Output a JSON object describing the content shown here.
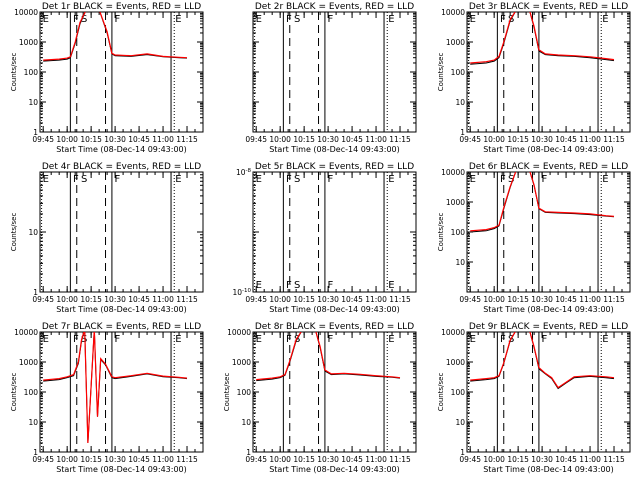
{
  "chart_data": [
    {
      "type": "line",
      "title": "Det 1r BLACK = Events, RED = LLD",
      "xlabel": "Start Time (08-Dec-14 09:43:00)",
      "ylabel": "Counts/sec",
      "x_ticks": [
        "09:45",
        "10:00",
        "10:15",
        "10:30",
        "10:45",
        "11:00",
        "11:15"
      ],
      "y_scale": "log",
      "ylim": [
        1,
        10000
      ],
      "y_ticks": [
        "1",
        "10",
        "100",
        "1000",
        "10000"
      ],
      "markers": [
        "E",
        "F",
        "S",
        "F",
        "E"
      ],
      "series": [
        {
          "color": "#000000",
          "x": [
            "09:45",
            "09:55",
            "10:00",
            "10:02",
            "10:05",
            "10:08",
            "10:12",
            "10:16",
            "10:20",
            "10:25",
            "10:28",
            "10:30",
            "10:40",
            "10:50",
            "11:00",
            "11:10",
            "11:15"
          ],
          "values": [
            230,
            250,
            270,
            300,
            900,
            4000,
            12000,
            12000,
            12000,
            2000,
            400,
            350,
            330,
            380,
            320,
            300,
            290
          ]
        },
        {
          "color": "#ff0000",
          "x": [
            "09:45",
            "09:55",
            "10:00",
            "10:02",
            "10:05",
            "10:08",
            "10:12",
            "10:16",
            "10:20",
            "10:25",
            "10:28",
            "10:30",
            "10:40",
            "10:50",
            "11:00",
            "11:10",
            "11:15"
          ],
          "values": [
            250,
            270,
            290,
            320,
            1000,
            4500,
            12000,
            12000,
            12000,
            2200,
            420,
            370,
            350,
            400,
            330,
            310,
            300
          ]
        }
      ]
    },
    {
      "type": "line",
      "title": "Det 2r BLACK = Events, RED = LLD",
      "xlabel": "Start Time (08-Dec-14 09:43:00)",
      "ylabel": "",
      "x_ticks": [
        "09:45",
        "10:00",
        "10:15",
        "10:30",
        "10:45",
        "11:00",
        "11:15"
      ],
      "y_scale": "log",
      "ylim": [
        1,
        10000
      ],
      "y_ticks": [],
      "markers": [
        "E",
        "F",
        "S",
        "F",
        "E"
      ],
      "series": []
    },
    {
      "type": "line",
      "title": "Det 3r BLACK = Events, RED = LLD",
      "xlabel": "Start Time (08-Dec-14 09:43:00)",
      "ylabel": "Counts/sec",
      "x_ticks": [
        "09:45",
        "10:00",
        "10:15",
        "10:30",
        "10:45",
        "11:00",
        "11:15"
      ],
      "y_scale": "log",
      "ylim": [
        1,
        10000
      ],
      "y_ticks": [
        "1",
        "10",
        "100",
        "1000",
        "10000"
      ],
      "markers": [
        "E",
        "F",
        "S",
        "F",
        "E"
      ],
      "series": [
        {
          "color": "#000000",
          "x": [
            "09:45",
            "09:55",
            "10:00",
            "10:03",
            "10:06",
            "10:10",
            "10:14",
            "10:18",
            "10:22",
            "10:25",
            "10:28",
            "10:32",
            "10:40",
            "10:50",
            "11:00",
            "11:10",
            "11:15"
          ],
          "values": [
            180,
            200,
            230,
            300,
            900,
            5000,
            12000,
            12000,
            12000,
            3000,
            500,
            380,
            350,
            330,
            300,
            260,
            240
          ]
        },
        {
          "color": "#ff0000",
          "x": [
            "09:45",
            "09:55",
            "10:00",
            "10:03",
            "10:06",
            "10:10",
            "10:14",
            "10:18",
            "10:22",
            "10:25",
            "10:28",
            "10:32",
            "10:40",
            "10:50",
            "11:00",
            "11:10",
            "11:15"
          ],
          "values": [
            200,
            220,
            250,
            330,
            1000,
            5500,
            12000,
            12000,
            12000,
            3300,
            550,
            400,
            370,
            350,
            320,
            280,
            260
          ]
        }
      ]
    },
    {
      "type": "line",
      "title": "Det 4r BLACK = Events, RED = LLD",
      "xlabel": "Start Time (08-Dec-14 09:43:00)",
      "ylabel": "Counts/sec",
      "x_ticks": [
        "09:45",
        "10:00",
        "10:15",
        "10:30",
        "10:45",
        "11:00",
        "11:15"
      ],
      "y_scale": "log",
      "ylim": [
        1,
        100
      ],
      "y_ticks": [
        "1",
        "10"
      ],
      "markers": [
        "E",
        "F",
        "S",
        "F",
        "E"
      ],
      "series": []
    },
    {
      "type": "line",
      "title": "Det 5r BLACK = Events, RED = LLD",
      "xlabel": "Start Time (08-Dec-14 09:43:00)",
      "ylabel": "",
      "x_ticks": [
        "09:45",
        "10:00",
        "10:15",
        "10:30",
        "10:45",
        "11:00",
        "11:15"
      ],
      "y_scale": "log",
      "ylim": [
        1e-10,
        1e-08
      ],
      "y_ticks": [
        "10^-10",
        "10^-8"
      ],
      "markers": [
        "E",
        "F",
        "S",
        "F",
        "E"
      ],
      "series": []
    },
    {
      "type": "line",
      "title": "Det 6r BLACK = Events, RED = LLD",
      "xlabel": "Start Time (08-Dec-14 09:43:00)",
      "ylabel": "Counts/sec",
      "x_ticks": [
        "09:45",
        "10:00",
        "10:15",
        "10:30",
        "10:45",
        "11:00",
        "11:15"
      ],
      "y_scale": "log",
      "ylim": [
        1,
        10000
      ],
      "y_ticks": [
        "10",
        "100",
        "1000",
        "10000"
      ],
      "markers": [
        "E",
        "F",
        "S",
        "F",
        "E"
      ],
      "series": [
        {
          "color": "#000000",
          "x": [
            "09:45",
            "09:55",
            "10:00",
            "10:03",
            "10:06",
            "10:10",
            "10:14",
            "10:18",
            "10:22",
            "10:25",
            "10:28",
            "10:32",
            "10:40",
            "10:50",
            "11:00",
            "11:10",
            "11:15"
          ],
          "values": [
            100,
            110,
            130,
            160,
            600,
            3000,
            12000,
            12000,
            12000,
            3500,
            600,
            450,
            430,
            410,
            380,
            340,
            320
          ]
        },
        {
          "color": "#ff0000",
          "x": [
            "09:45",
            "09:55",
            "10:00",
            "10:03",
            "10:06",
            "10:10",
            "10:14",
            "10:18",
            "10:22",
            "10:25",
            "10:28",
            "10:32",
            "10:40",
            "10:50",
            "11:00",
            "11:10",
            "11:15"
          ],
          "values": [
            110,
            120,
            140,
            170,
            650,
            3200,
            12000,
            12000,
            12000,
            3700,
            620,
            470,
            450,
            430,
            400,
            350,
            330
          ]
        }
      ]
    },
    {
      "type": "line",
      "title": "Det 7r BLACK = Events, RED = LLD",
      "xlabel": "Start Time (08-Dec-14 09:43:00)",
      "ylabel": "Counts/sec",
      "x_ticks": [
        "09:45",
        "10:00",
        "10:15",
        "10:30",
        "10:45",
        "11:00",
        "11:15"
      ],
      "y_scale": "log",
      "ylim": [
        1,
        10000
      ],
      "y_ticks": [
        "1",
        "10",
        "100",
        "1000",
        "10000"
      ],
      "markers": [
        "E",
        "F",
        "S",
        "F",
        "E"
      ],
      "series": [
        {
          "color": "#000000",
          "x": [
            "09:45",
            "09:55",
            "10:00",
            "10:04",
            "10:07",
            "10:09",
            "10:11",
            "10:13",
            "10:17",
            "10:19",
            "10:21",
            "10:24",
            "10:28",
            "10:30",
            "10:40",
            "10:50",
            "11:00",
            "11:10",
            "11:15"
          ],
          "values": [
            230,
            260,
            300,
            350,
            900,
            5000,
            12000,
            2,
            12000,
            15,
            1200,
            800,
            300,
            280,
            330,
            400,
            320,
            300,
            280
          ]
        },
        {
          "color": "#ff0000",
          "x": [
            "09:45",
            "09:55",
            "10:00",
            "10:04",
            "10:07",
            "10:09",
            "10:11",
            "10:13",
            "10:17",
            "10:19",
            "10:21",
            "10:24",
            "10:28",
            "10:30",
            "10:40",
            "10:50",
            "11:00",
            "11:10",
            "11:15"
          ],
          "values": [
            250,
            280,
            320,
            380,
            1000,
            5500,
            12000,
            2,
            12000,
            15,
            1300,
            850,
            320,
            300,
            350,
            420,
            340,
            310,
            290
          ]
        }
      ]
    },
    {
      "type": "line",
      "title": "Det 8r BLACK = Events, RED = LLD",
      "xlabel": "Start Time (08-Dec-14 09:43:00)",
      "ylabel": "Counts/sec",
      "x_ticks": [
        "09:45",
        "10:00",
        "10:15",
        "10:30",
        "10:45",
        "11:00",
        "11:15"
      ],
      "y_scale": "log",
      "ylim": [
        1,
        10000
      ],
      "y_ticks": [
        "1",
        "10",
        "100",
        "1000",
        "10000"
      ],
      "markers": [
        "E",
        "F",
        "S",
        "F",
        "E"
      ],
      "series": [
        {
          "color": "#000000",
          "x": [
            "09:45",
            "09:55",
            "10:00",
            "10:03",
            "10:06",
            "10:10",
            "10:14",
            "10:18",
            "10:22",
            "10:25",
            "10:28",
            "10:32",
            "10:40",
            "10:50",
            "11:00",
            "11:10",
            "11:15"
          ],
          "values": [
            240,
            270,
            300,
            360,
            1000,
            5000,
            12000,
            12000,
            12000,
            3000,
            500,
            380,
            400,
            370,
            330,
            310,
            290
          ]
        },
        {
          "color": "#ff0000",
          "x": [
            "09:45",
            "09:55",
            "10:00",
            "10:03",
            "10:06",
            "10:10",
            "10:14",
            "10:18",
            "10:22",
            "10:25",
            "10:28",
            "10:32",
            "10:40",
            "10:50",
            "11:00",
            "11:10",
            "11:15"
          ],
          "values": [
            260,
            290,
            320,
            380,
            1100,
            5500,
            12000,
            12000,
            12000,
            3300,
            540,
            400,
            420,
            390,
            350,
            320,
            300
          ]
        }
      ]
    },
    {
      "type": "line",
      "title": "Det 9r BLACK = Events, RED = LLD",
      "xlabel": "Start Time (08-Dec-14 09:43:00)",
      "ylabel": "Counts/sec",
      "x_ticks": [
        "09:45",
        "10:00",
        "10:15",
        "10:30",
        "10:45",
        "11:00",
        "11:15"
      ],
      "y_scale": "log",
      "ylim": [
        1,
        10000
      ],
      "y_ticks": [
        "1",
        "10",
        "100",
        "1000",
        "10000"
      ],
      "markers": [
        "E",
        "F",
        "S",
        "F",
        "E"
      ],
      "series": [
        {
          "color": "#000000",
          "x": [
            "09:45",
            "09:55",
            "10:00",
            "10:03",
            "10:06",
            "10:10",
            "10:14",
            "10:18",
            "10:22",
            "10:25",
            "10:28",
            "10:32",
            "10:36",
            "10:40",
            "10:45",
            "10:50",
            "11:00",
            "11:10",
            "11:15"
          ],
          "values": [
            230,
            260,
            280,
            330,
            900,
            5000,
            12000,
            12000,
            12000,
            3000,
            600,
            400,
            280,
            130,
            200,
            300,
            330,
            300,
            280
          ]
        },
        {
          "color": "#ff0000",
          "x": [
            "09:45",
            "09:55",
            "10:00",
            "10:03",
            "10:06",
            "10:10",
            "10:14",
            "10:18",
            "10:22",
            "10:25",
            "10:28",
            "10:32",
            "10:36",
            "10:40",
            "10:45",
            "10:50",
            "11:00",
            "11:10",
            "11:15"
          ],
          "values": [
            250,
            280,
            300,
            350,
            950,
            5300,
            12000,
            12000,
            12000,
            3200,
            650,
            420,
            300,
            140,
            210,
            320,
            350,
            320,
            300
          ]
        }
      ]
    }
  ]
}
